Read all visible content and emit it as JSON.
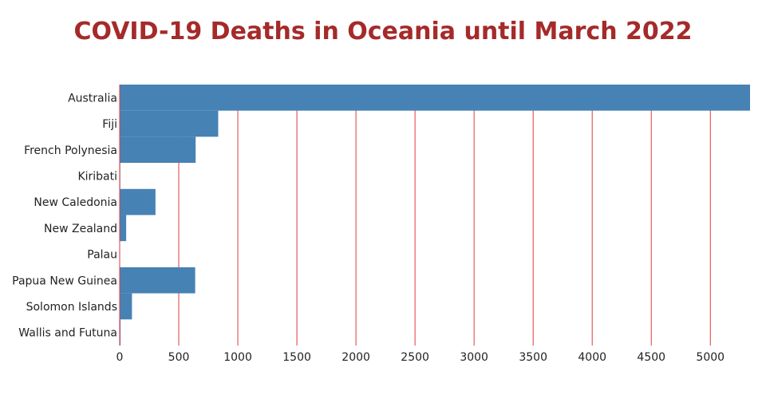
{
  "chart_data": {
    "type": "bar",
    "orientation": "horizontal",
    "title": "COVID-19 Deaths in Oceania until March 2022",
    "xlabel": "",
    "ylabel": "",
    "categories": [
      "Australia",
      "Fiji",
      "French Polynesia",
      "Kiribati",
      "New Caledonia",
      "New Zealand",
      "Palau",
      "Papua New Guinea",
      "Solomon Islands",
      "Wallis and Futuna"
    ],
    "values": [
      5336,
      834,
      643,
      5,
      303,
      55,
      1,
      639,
      104,
      7
    ],
    "xlim": [
      0,
      5336
    ],
    "xticks": [
      0,
      500,
      1000,
      1500,
      2000,
      2500,
      3000,
      3500,
      4000,
      4500,
      5000
    ],
    "grid": true,
    "legend": "none",
    "colors": {
      "bar": "#4682b4",
      "grid": "#e0393e",
      "title": "#a52a2a",
      "text": "#222222"
    }
  }
}
